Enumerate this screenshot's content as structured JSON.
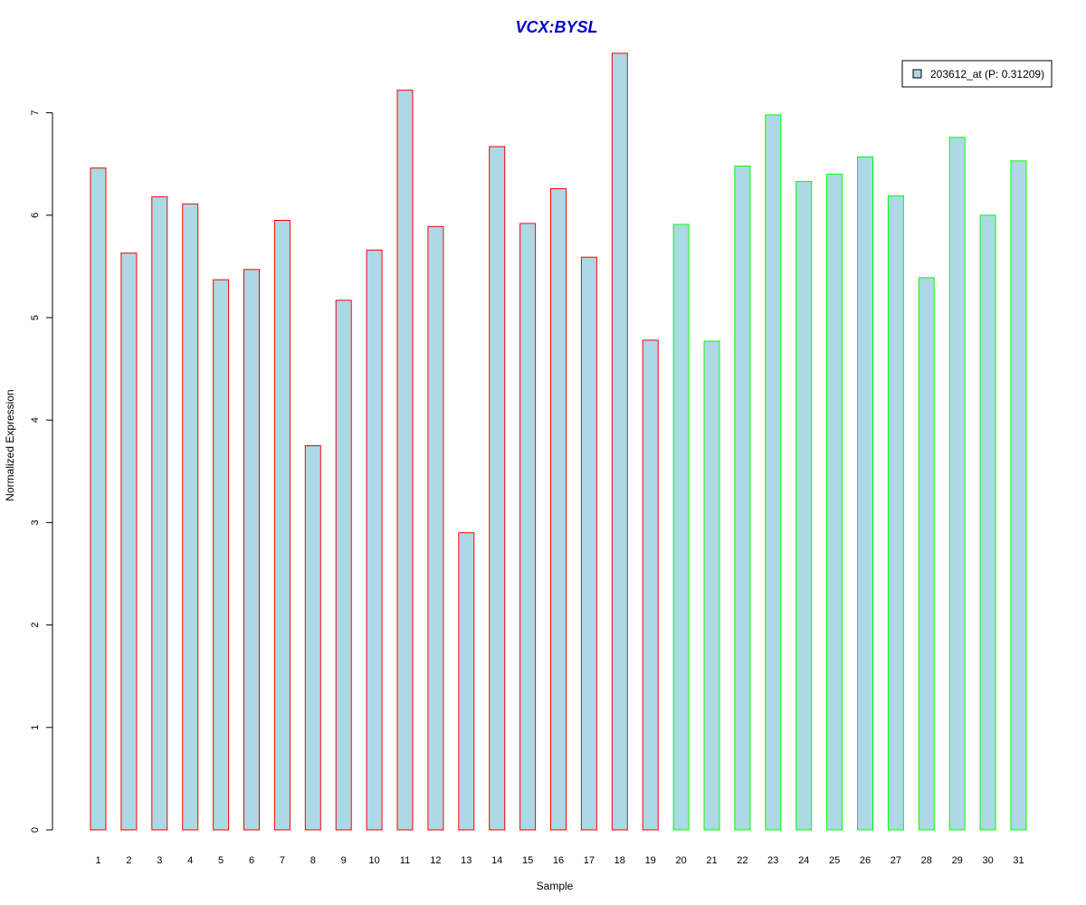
{
  "colors": {
    "bar_fill": "#add8e6",
    "group1_border": "#ff0000",
    "group2_border": "#00ff00",
    "title": "#0000cd",
    "axis": "#000000"
  },
  "chart_data": {
    "type": "bar",
    "title": "VCX:BYSL",
    "xlabel": "Sample",
    "ylabel": "Normalized Expression",
    "ylim": [
      0,
      7.6
    ],
    "yticks": [
      0,
      1,
      2,
      3,
      4,
      5,
      6,
      7
    ],
    "categories": [
      "1",
      "2",
      "3",
      "4",
      "5",
      "6",
      "7",
      "8",
      "9",
      "10",
      "11",
      "12",
      "13",
      "14",
      "15",
      "16",
      "17",
      "18",
      "19",
      "20",
      "21",
      "22",
      "23",
      "24",
      "25",
      "26",
      "27",
      "28",
      "29",
      "30",
      "31"
    ],
    "series": [
      {
        "name": "203612_at (P: 0.31209)",
        "values": [
          6.46,
          5.63,
          6.18,
          6.11,
          5.37,
          5.47,
          5.95,
          3.75,
          5.17,
          5.66,
          7.22,
          5.89,
          2.9,
          6.67,
          5.92,
          6.26,
          5.59,
          7.58,
          4.78,
          5.91,
          4.77,
          6.48,
          6.98,
          6.33,
          6.4,
          6.57,
          6.19,
          5.39,
          6.76,
          6.0,
          6.53
        ],
        "groups": [
          1,
          1,
          1,
          1,
          1,
          1,
          1,
          1,
          1,
          1,
          1,
          1,
          1,
          1,
          1,
          1,
          1,
          1,
          1,
          2,
          2,
          2,
          2,
          2,
          2,
          2,
          2,
          2,
          2,
          2,
          2
        ]
      }
    ],
    "legend": {
      "placement": "top-right",
      "entries": [
        "203612_at (P: 0.31209)"
      ]
    },
    "grid": false
  }
}
